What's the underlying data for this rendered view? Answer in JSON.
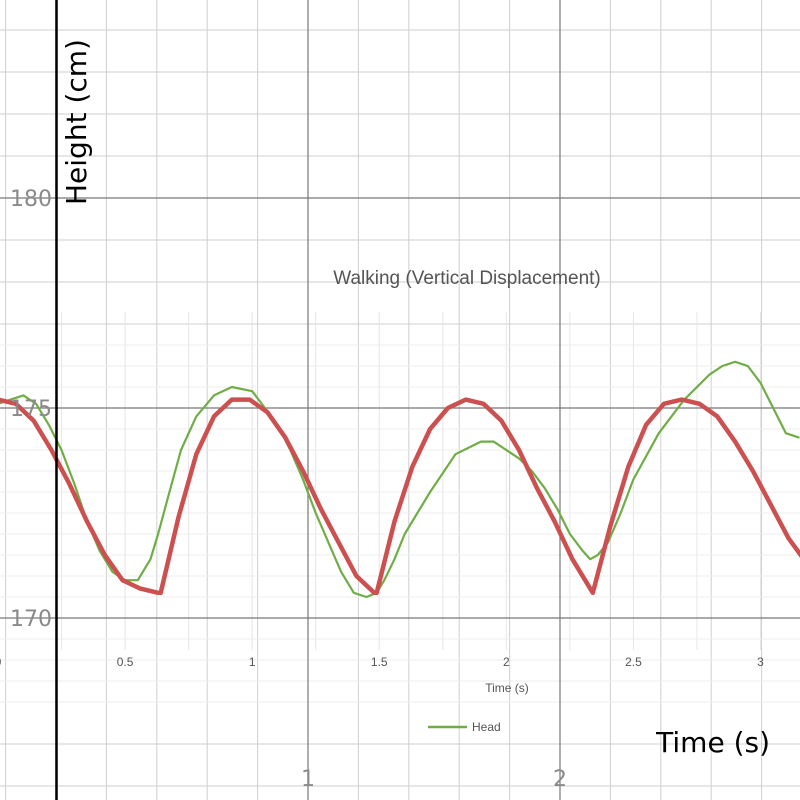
{
  "chart_data": [
    {
      "type": "line",
      "title": "Walking (Vertical Displacement)",
      "xlabel": "Time (s)",
      "ylabel": "",
      "xlim": [
        0,
        3.17
      ],
      "ylim": [
        168,
        177
      ],
      "x_ticks": [
        "0",
        "0.5",
        "1",
        "1.5",
        "2",
        "2.5",
        "3"
      ],
      "x_tick_values": [
        0,
        0.5,
        1,
        1.5,
        2,
        2.5,
        3
      ],
      "grid": true,
      "legend": "bottom-center",
      "series": [
        {
          "name": "Head",
          "color": "#70ad47",
          "x": [
            0,
            0.05,
            0.1,
            0.15,
            0.2,
            0.25,
            0.3,
            0.35,
            0.4,
            0.45,
            0.5,
            0.55,
            0.6,
            0.63,
            0.67,
            0.72,
            0.78,
            0.85,
            0.92,
            1.0,
            1.05,
            1.1,
            1.15,
            1.2,
            1.25,
            1.3,
            1.35,
            1.4,
            1.45,
            1.49,
            1.52,
            1.56,
            1.6,
            1.7,
            1.8,
            1.9,
            1.95,
            2.0,
            2.05,
            2.1,
            2.15,
            2.2,
            2.25,
            2.3,
            2.33,
            2.36,
            2.4,
            2.45,
            2.5,
            2.6,
            2.7,
            2.8,
            2.85,
            2.9,
            2.95,
            3.0,
            3.05,
            3.1,
            3.15
          ],
          "y": [
            175.1,
            175.2,
            175.3,
            175.1,
            174.6,
            174.0,
            173.2,
            172.3,
            171.6,
            171.1,
            170.9,
            170.9,
            171.4,
            172.0,
            172.9,
            174.0,
            174.8,
            175.3,
            175.5,
            175.4,
            175.0,
            174.6,
            174.0,
            173.3,
            172.5,
            171.8,
            171.1,
            170.6,
            170.5,
            170.6,
            170.9,
            171.4,
            172.0,
            173.0,
            173.9,
            174.2,
            174.2,
            174.0,
            173.8,
            173.5,
            173.1,
            172.6,
            172.0,
            171.6,
            171.4,
            171.5,
            171.8,
            172.5,
            173.3,
            174.4,
            175.2,
            175.8,
            176.0,
            176.1,
            176.0,
            175.6,
            175.0,
            174.4,
            174.3
          ]
        },
        {
          "name": "",
          "color": "#cd5050",
          "x": [
            0,
            0.07,
            0.14,
            0.21,
            0.28,
            0.35,
            0.42,
            0.49,
            0.56,
            0.63,
            0.64,
            0.71,
            0.78,
            0.85,
            0.92,
            0.99,
            1.06,
            1.13,
            1.2,
            1.27,
            1.34,
            1.41,
            1.48,
            1.49,
            1.56,
            1.63,
            1.7,
            1.77,
            1.84,
            1.91,
            1.98,
            2.05,
            2.12,
            2.19,
            2.26,
            2.33,
            2.34,
            2.41,
            2.48,
            2.55,
            2.62,
            2.69,
            2.76,
            2.83,
            2.9,
            2.97,
            3.04,
            3.11,
            3.17
          ],
          "y": [
            175.2,
            175.1,
            174.7,
            174.0,
            173.2,
            172.3,
            171.5,
            170.9,
            170.7,
            170.6,
            170.6,
            172.4,
            173.9,
            174.8,
            175.2,
            175.2,
            174.9,
            174.3,
            173.5,
            172.6,
            171.8,
            171.0,
            170.6,
            170.6,
            172.3,
            173.6,
            174.5,
            175.0,
            175.2,
            175.1,
            174.7,
            174.0,
            173.1,
            172.3,
            171.4,
            170.7,
            170.6,
            172.2,
            173.6,
            174.6,
            175.1,
            175.2,
            175.1,
            174.8,
            174.2,
            173.5,
            172.7,
            171.9,
            171.4
          ]
        }
      ]
    },
    {
      "type": "line",
      "title": "",
      "xlabel": "Time (s)",
      "ylabel": "Height (cm)",
      "xlim": [
        -0.22,
        2.98
      ],
      "ylim": [
        166.0,
        184.7
      ],
      "x_ticks": [
        "1",
        "2"
      ],
      "x_tick_values": [
        1,
        2
      ],
      "y_ticks": [
        "170",
        "175",
        "180"
      ],
      "y_tick_values": [
        170,
        175,
        180
      ],
      "grid": true
    }
  ]
}
